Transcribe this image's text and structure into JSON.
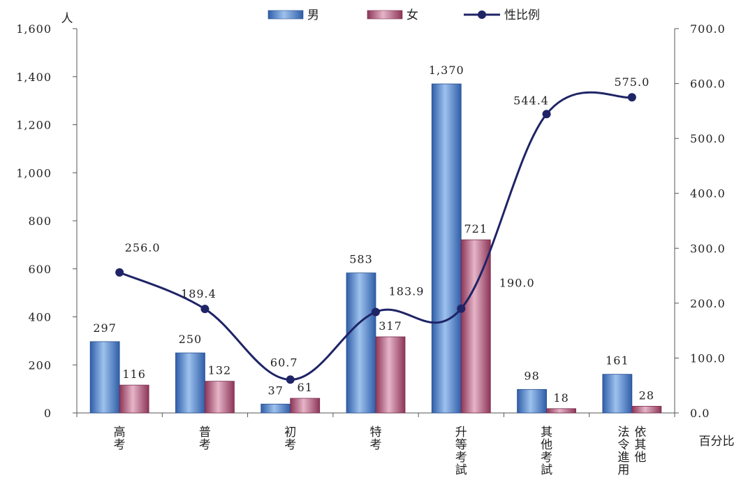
{
  "chart_data": {
    "type": "bar+line",
    "categories": [
      "高考",
      "普考",
      "初考",
      "特考",
      "升等考試",
      "其他考試",
      "法令進用 依其他"
    ],
    "series": [
      {
        "name": "男",
        "type": "bar",
        "axis": "left",
        "values": [
          297,
          250,
          37,
          583,
          1370,
          98,
          161
        ],
        "labels": [
          "297",
          "250",
          "37",
          "583",
          "1,370",
          "98",
          "161"
        ],
        "color": "#4a7cc4"
      },
      {
        "name": "女",
        "type": "bar",
        "axis": "left",
        "values": [
          116,
          132,
          61,
          317,
          721,
          18,
          28
        ],
        "labels": [
          "116",
          "132",
          "61",
          "317",
          "721",
          "18",
          "28"
        ],
        "color": "#b05577"
      },
      {
        "name": "性比例",
        "type": "line",
        "axis": "right",
        "values": [
          256.0,
          189.4,
          60.7,
          183.9,
          190.0,
          544.4,
          575.0
        ],
        "labels": [
          "256.0",
          "189.4",
          "60.7",
          "183.9",
          "190.0",
          "544.4",
          "575.0"
        ],
        "color": "#1f2466"
      }
    ],
    "y_left": {
      "label": "人",
      "ylim": [
        0,
        1600
      ],
      "ticks": [
        "0",
        "200",
        "400",
        "600",
        "800",
        "1,000",
        "1,200",
        "1,400",
        "1,600"
      ],
      "tick_values": [
        0,
        200,
        400,
        600,
        800,
        1000,
        1200,
        1400,
        1600
      ]
    },
    "y_right": {
      "label": "百分比",
      "ylim": [
        0,
        700
      ],
      "ticks": [
        "0.0",
        "100.0",
        "200.0",
        "300.0",
        "400.0",
        "500.0",
        "600.0",
        "700.0"
      ],
      "tick_values": [
        0,
        100,
        200,
        300,
        400,
        500,
        600,
        700
      ]
    },
    "legend": {
      "position": "top",
      "entries": [
        "男",
        "女",
        "性比例"
      ]
    },
    "grid": false
  }
}
